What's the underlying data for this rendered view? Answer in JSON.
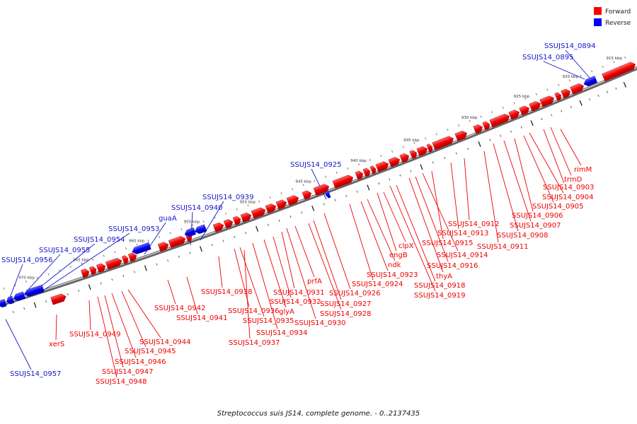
{
  "caption": "Streptococcus suis JS14, complete genome. - 0..2137435",
  "legend": {
    "forward_label": "Forward",
    "reverse_label": "Reverse",
    "forward_color": "#ff0000",
    "reverse_color": "#0000ff"
  },
  "axis": {
    "tick_labels": [
      "915 kbp",
      "920 kbp",
      "925 kbp",
      "930 kbp",
      "935 kbp",
      "940 kbp",
      "945 kbp",
      "950 kbp",
      "955 kbp",
      "960 kbp",
      "965 kbp",
      "970 kbp"
    ]
  },
  "genes": {
    "forward": [
      {
        "label": "rimM"
      },
      {
        "label": "trmD"
      },
      {
        "label": "SSUJS14_0903"
      },
      {
        "label": "SSUJS14_0904"
      },
      {
        "label": "SSUJS14_0905"
      },
      {
        "label": "SSUJS14_0906"
      },
      {
        "label": "SSUJS14_0907"
      },
      {
        "label": "SSUJS14_0908"
      },
      {
        "label": "SSUJS14_0911"
      },
      {
        "label": "SSUJS14_0912"
      },
      {
        "label": "SSUJS14_0913"
      },
      {
        "label": "SSUJS14_0915"
      },
      {
        "label": "SSUJS14_0914"
      },
      {
        "label": "SSUJS14_0916"
      },
      {
        "label": "thyA"
      },
      {
        "label": "SSUJS14_0918"
      },
      {
        "label": "SSUJS14_0919"
      },
      {
        "label": "clpX"
      },
      {
        "label": "engB"
      },
      {
        "label": "ndk"
      },
      {
        "label": "SSUJS14_0923"
      },
      {
        "label": "SSUJS14_0924"
      },
      {
        "label": "SSUJS14_0926"
      },
      {
        "label": "SSUJS14_0927"
      },
      {
        "label": "SSUJS14_0928"
      },
      {
        "label": "SSUJS14_0930"
      },
      {
        "label": "prfA"
      },
      {
        "label": "SSUJS14_0931"
      },
      {
        "label": "SSUJS14_0932"
      },
      {
        "label": "glyA"
      },
      {
        "label": "SSUJS14_0934"
      },
      {
        "label": "SSUJS14_0935"
      },
      {
        "label": "SSUJS14_0936"
      },
      {
        "label": "SSUJS14_0937"
      },
      {
        "label": "SSUJS14_0938"
      },
      {
        "label": "SSUJS14_0941"
      },
      {
        "label": "SSUJS14_0942"
      },
      {
        "label": "SSUJS14_0944"
      },
      {
        "label": "SSUJS14_0945"
      },
      {
        "label": "SSUJS14_0946"
      },
      {
        "label": "SSUJS14_0947"
      },
      {
        "label": "SSUJS14_0948"
      },
      {
        "label": "SSUJS14_0949"
      },
      {
        "label": "xerS"
      }
    ],
    "reverse": [
      {
        "label": "SSUJS14_0894"
      },
      {
        "label": "SSUJS14_0895"
      },
      {
        "label": "SSUJS14_0925"
      },
      {
        "label": "SSUJS14_0939"
      },
      {
        "label": "SSUJS14_0940"
      },
      {
        "label": "guaA"
      },
      {
        "label": "SSUJS14_0953"
      },
      {
        "label": "SSUJS14_0954"
      },
      {
        "label": "SSUJS14_0955"
      },
      {
        "label": "SSUJS14_0956"
      },
      {
        "label": "SSUJS14_0957"
      }
    ]
  }
}
